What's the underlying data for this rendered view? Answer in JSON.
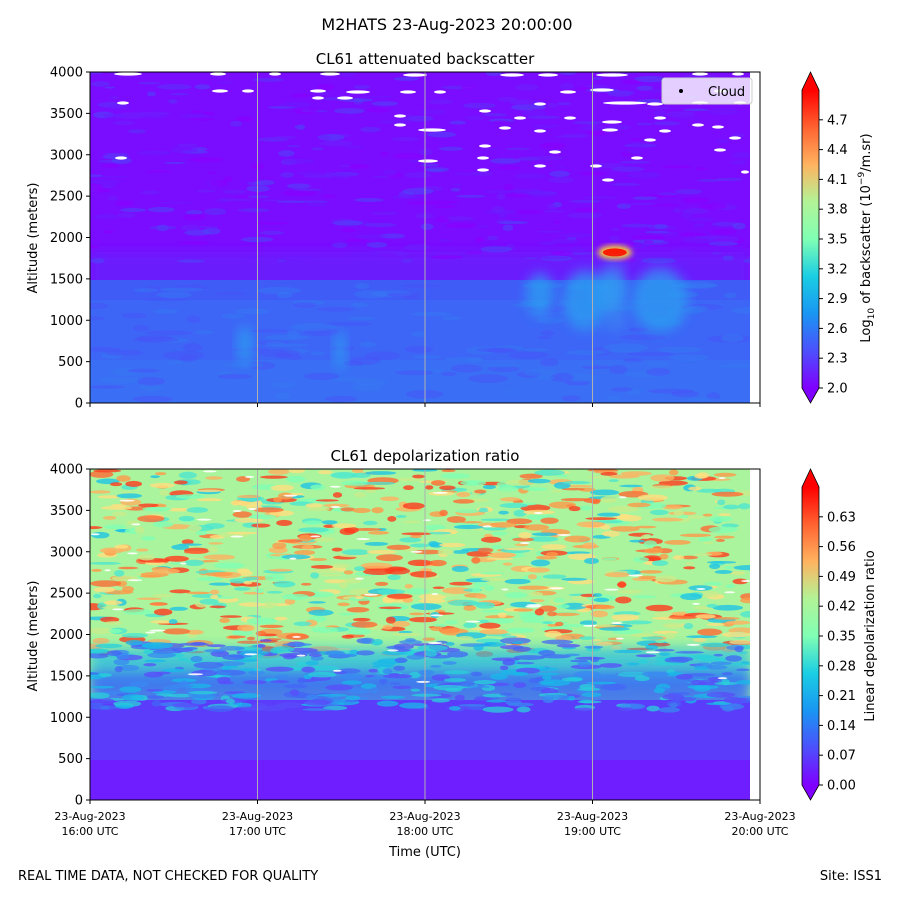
{
  "suptitle": "M2HATS 23-Aug-2023 20:00:00",
  "footer": {
    "left": "REAL TIME DATA, NOT CHECKED FOR QUALITY",
    "right": "Site: ISS1"
  },
  "chart_data": [
    {
      "type": "heatmap",
      "title": "CL61 attenuated backscatter",
      "ylabel": "Altitude (meters)",
      "xlabel": "",
      "ylim": [
        0,
        4000
      ],
      "yticks": [
        "0",
        "500",
        "1000",
        "1500",
        "2000",
        "2500",
        "3000",
        "3500",
        "4000"
      ],
      "xlim_hours_utc": [
        16,
        20
      ],
      "grid": "vertical",
      "legend": {
        "placement": "top-right",
        "entries": [
          "Cloud"
        ]
      },
      "colorbar": {
        "label_prefix": "Log",
        "label_sub": "10",
        "label_mid": " of backscatter (10",
        "label_sup": "−9",
        "label_suffix": "/m.sr)",
        "range": [
          2.0,
          5.0
        ],
        "ticks": [
          "2.0",
          "2.3",
          "2.6",
          "2.9",
          "3.2",
          "3.5",
          "3.8",
          "4.1",
          "4.4",
          "4.7"
        ],
        "colormap": "rainbow"
      },
      "cloud_detections": [
        {
          "time": "19:08",
          "altitude": 1820
        }
      ]
    },
    {
      "type": "heatmap",
      "title": "CL61 depolarization ratio",
      "ylabel": "Altitude (meters)",
      "xlabel": "Time (UTC)",
      "ylim": [
        0,
        4000
      ],
      "yticks": [
        "0",
        "500",
        "1000",
        "1500",
        "2000",
        "2500",
        "3000",
        "3500",
        "4000"
      ],
      "xlim_hours_utc": [
        16,
        20
      ],
      "grid": "vertical",
      "xticks": [
        {
          "date": "23-Aug-2023",
          "time": "16:00 UTC"
        },
        {
          "date": "23-Aug-2023",
          "time": "17:00 UTC"
        },
        {
          "date": "23-Aug-2023",
          "time": "18:00 UTC"
        },
        {
          "date": "23-Aug-2023",
          "time": "19:00 UTC"
        },
        {
          "date": "23-Aug-2023",
          "time": "20:00 UTC"
        }
      ],
      "colorbar": {
        "label": "Linear depolarization ratio",
        "range": [
          0.0,
          0.7
        ],
        "ticks": [
          "0.00",
          "0.07",
          "0.14",
          "0.21",
          "0.28",
          "0.35",
          "0.42",
          "0.49",
          "0.56",
          "0.63"
        ],
        "colormap": "rainbow"
      }
    }
  ]
}
